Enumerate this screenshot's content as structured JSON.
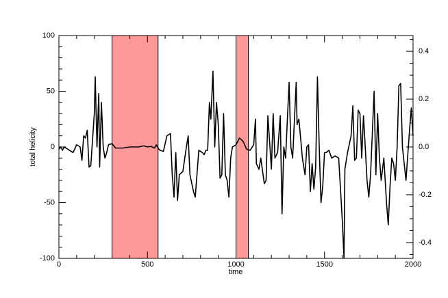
{
  "chart_data": {
    "type": "line",
    "xlabel": "time",
    "ylabel": "total helicity",
    "color": "#000000",
    "shaded_spans": [
      [
        300,
        560
      ],
      [
        1000,
        1070
      ]
    ],
    "span_color": "#ff9999",
    "xlim": [
      0,
      2000
    ],
    "xticks": [
      0,
      500,
      1000,
      1500,
      2000
    ],
    "xminorticks": [
      100,
      200,
      300,
      400,
      600,
      700,
      800,
      900,
      1100,
      1200,
      1300,
      1400,
      1600,
      1700,
      1800,
      1900
    ],
    "ylim": [
      -100,
      100
    ],
    "yticks": [
      -100,
      -50,
      0,
      50,
      100
    ],
    "yminorticks": [
      -90,
      -80,
      -70,
      -60,
      -40,
      -30,
      -20,
      -10,
      10,
      20,
      30,
      40,
      60,
      70,
      80,
      90
    ],
    "y2lim": [
      -0.466,
      0.466
    ],
    "y2ticks": [
      -0.4,
      -0.2,
      {
        "value": 0,
        "label": "0.0"
      },
      0.2,
      0.4
    ],
    "y2minorticks": [
      -0.45,
      -0.35,
      -0.3,
      -0.25,
      -0.15,
      -0.1,
      -0.05,
      0.05,
      0.1,
      0.15,
      0.25,
      0.3,
      0.35,
      0.45
    ],
    "x": [
      0,
      10,
      20,
      30,
      40,
      50,
      60,
      80,
      100,
      120,
      130,
      140,
      150,
      160,
      170,
      180,
      200,
      205,
      215,
      225,
      230,
      240,
      250,
      260,
      270,
      280,
      300,
      320,
      330,
      360,
      400,
      450,
      480,
      500,
      520,
      540,
      550,
      560,
      570,
      590,
      610,
      630,
      640,
      650,
      660,
      670,
      680,
      700,
      720,
      730,
      740,
      760,
      770,
      790,
      810,
      820,
      830,
      840,
      850,
      858,
      870,
      880,
      890,
      900,
      910,
      920,
      930,
      940,
      950,
      960,
      970,
      980,
      1000,
      1020,
      1040,
      1060,
      1080,
      1100,
      1110,
      1115,
      1130,
      1140,
      1160,
      1170,
      1180,
      1200,
      1210,
      1220,
      1235,
      1250,
      1260,
      1270,
      1280,
      1300,
      1310,
      1320,
      1340,
      1345,
      1355,
      1365,
      1375,
      1390,
      1400,
      1410,
      1420,
      1430,
      1440,
      1450,
      1460,
      1470,
      1480,
      1490,
      1500,
      1510,
      1525,
      1540,
      1560,
      1580,
      1600,
      1610,
      1615,
      1630,
      1650,
      1660,
      1670,
      1680,
      1690,
      1700,
      1710,
      1720,
      1730,
      1740,
      1750,
      1760,
      1780,
      1790,
      1800,
      1810,
      1820,
      1835,
      1850,
      1860,
      1870,
      1880,
      1890,
      1900,
      1910,
      1920,
      1930,
      1940,
      1960,
      1980,
      1990,
      2000
    ],
    "values": [
      -2,
      0,
      -3,
      0,
      -1,
      -2,
      -3,
      -5,
      2,
      0,
      -12,
      10,
      8,
      15,
      -18,
      -17,
      30,
      63,
      0,
      48,
      -18,
      40,
      0,
      -10,
      -5,
      2,
      3,
      -1,
      -1,
      -1,
      0,
      0,
      1,
      0,
      0.5,
      -1,
      2,
      -1,
      -3,
      -4,
      10,
      12,
      -25,
      -45,
      -5,
      -48,
      -25,
      -22,
      0,
      10,
      -25,
      -40,
      -45,
      -3,
      -5,
      -7,
      -3,
      -3,
      40,
      25,
      68,
      0,
      40,
      20,
      -28,
      -25,
      30,
      -25,
      -30,
      -45,
      -10,
      0,
      2,
      8,
      5,
      -2,
      -3,
      2,
      25,
      -15,
      -20,
      -10,
      -33,
      -30,
      28,
      -20,
      30,
      -10,
      -5,
      28,
      -60,
      0,
      -10,
      58,
      0,
      -10,
      58,
      20,
      25,
      8,
      -10,
      -25,
      0,
      2,
      -40,
      -15,
      -38,
      -18,
      63,
      0,
      -50,
      -35,
      -5,
      -5,
      -3,
      -10,
      -8,
      -10,
      -65,
      -100,
      -20,
      -5,
      10,
      37,
      -12,
      -10,
      33,
      30,
      -10,
      28,
      0,
      -30,
      -45,
      -25,
      50,
      -25,
      30,
      -10,
      -30,
      -10,
      -50,
      -70,
      -35,
      -10,
      -15,
      -30,
      0,
      55,
      57,
      0,
      -30,
      15,
      35,
      10
    ]
  }
}
